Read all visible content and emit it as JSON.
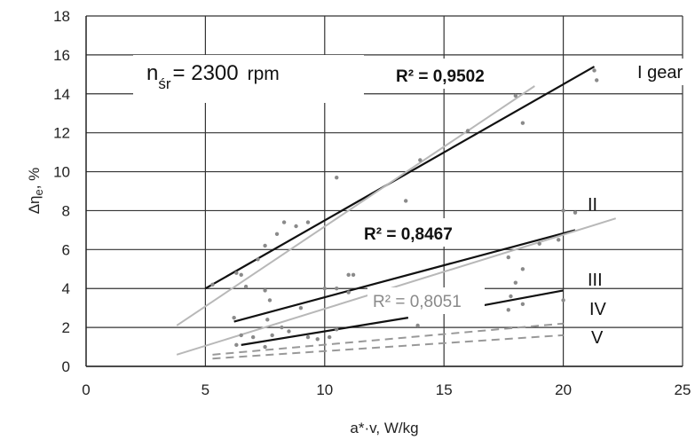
{
  "chart_data": {
    "type": "scatter",
    "title": "",
    "xlabel": "a*·v, W/kg",
    "ylabel": "Δη",
    "ylabel_sub": "e",
    "ylabel_unit": ", %",
    "xlim": [
      0,
      25
    ],
    "ylim": [
      0,
      18
    ],
    "xticks": [
      0,
      5,
      10,
      15,
      20,
      25
    ],
    "yticks": [
      0,
      2,
      4,
      6,
      8,
      10,
      12,
      14,
      16,
      18
    ],
    "grid": true,
    "speed_annotation": {
      "main": "n",
      "sub": "śr",
      "value": "= 2300",
      "unit": "rpm"
    },
    "fits": [
      {
        "gear": "I gear",
        "r2": "R² = 0,9502",
        "color": "#111111",
        "dash": false,
        "x": [
          5.0,
          21.3
        ],
        "y": [
          4.0,
          15.4
        ]
      },
      {
        "gear": "",
        "r2": "",
        "color": "#b8b8b8",
        "dash": false,
        "x": [
          3.8,
          18.8
        ],
        "y": [
          2.1,
          14.4
        ]
      },
      {
        "gear": "II",
        "r2": "R² = 0,8467",
        "color": "#111111",
        "dash": false,
        "x": [
          6.2,
          20.5
        ],
        "y": [
          2.3,
          7.0
        ]
      },
      {
        "gear": "",
        "r2": "",
        "color": "#b8b8b8",
        "dash": false,
        "x": [
          3.8,
          22.2
        ],
        "y": [
          0.6,
          7.6
        ]
      },
      {
        "gear": "III",
        "r2": "R² = 0,8051",
        "color": "#111111",
        "dash": false,
        "x": [
          16.5,
          20.0
        ],
        "y": [
          3.1,
          3.9
        ]
      },
      {
        "gear": "IV",
        "r2": "",
        "color": "#111111",
        "dash": false,
        "x": [
          6.5,
          13.5
        ],
        "y": [
          1.1,
          2.5
        ]
      },
      {
        "gear": "V",
        "r2": "",
        "color": "#999999",
        "dash": true,
        "x": [
          5.3,
          20.0
        ],
        "y": [
          0.6,
          2.2
        ]
      },
      {
        "gear": "",
        "r2": "",
        "color": "#999999",
        "dash": true,
        "x": [
          5.3,
          20.0
        ],
        "y": [
          0.4,
          1.6
        ]
      }
    ],
    "points": [
      [
        5.3,
        4.2
      ],
      [
        6.3,
        4.8
      ],
      [
        6.5,
        4.7
      ],
      [
        7.2,
        5.5
      ],
      [
        7.5,
        6.2
      ],
      [
        8.0,
        6.8
      ],
      [
        8.3,
        7.4
      ],
      [
        8.8,
        7.2
      ],
      [
        9.3,
        7.4
      ],
      [
        10.5,
        9.7
      ],
      [
        13.4,
        8.5
      ],
      [
        14.0,
        10.6
      ],
      [
        16.0,
        12.1
      ],
      [
        18.0,
        13.9
      ],
      [
        18.3,
        12.5
      ],
      [
        21.4,
        14.7
      ],
      [
        21.3,
        15.2
      ],
      [
        6.2,
        2.5
      ],
      [
        6.7,
        4.1
      ],
      [
        7.5,
        3.9
      ],
      [
        7.7,
        3.4
      ],
      [
        7.6,
        2.4
      ],
      [
        9.0,
        3.0
      ],
      [
        10.0,
        4.0
      ],
      [
        10.5,
        4.0
      ],
      [
        11.0,
        4.7
      ],
      [
        11.2,
        4.7
      ],
      [
        11.0,
        3.8
      ],
      [
        13.6,
        3.5
      ],
      [
        17.7,
        5.6
      ],
      [
        18.3,
        5.0
      ],
      [
        18.0,
        4.3
      ],
      [
        19.0,
        6.3
      ],
      [
        19.8,
        6.5
      ],
      [
        20.0,
        8.0
      ],
      [
        20.5,
        7.9
      ],
      [
        6.5,
        1.6
      ],
      [
        7.0,
        1.5
      ],
      [
        7.8,
        1.6
      ],
      [
        8.2,
        2.0
      ],
      [
        8.5,
        1.8
      ],
      [
        9.3,
        1.5
      ],
      [
        9.7,
        1.4
      ],
      [
        10.2,
        1.5
      ],
      [
        10.5,
        1.9
      ],
      [
        17.8,
        3.6
      ],
      [
        17.7,
        2.9
      ],
      [
        18.3,
        3.2
      ],
      [
        20.0,
        3.4
      ],
      [
        13.9,
        2.1
      ],
      [
        6.3,
        1.1
      ],
      [
        7.5,
        1.0
      ]
    ],
    "point_color": "#8a8a8a"
  }
}
